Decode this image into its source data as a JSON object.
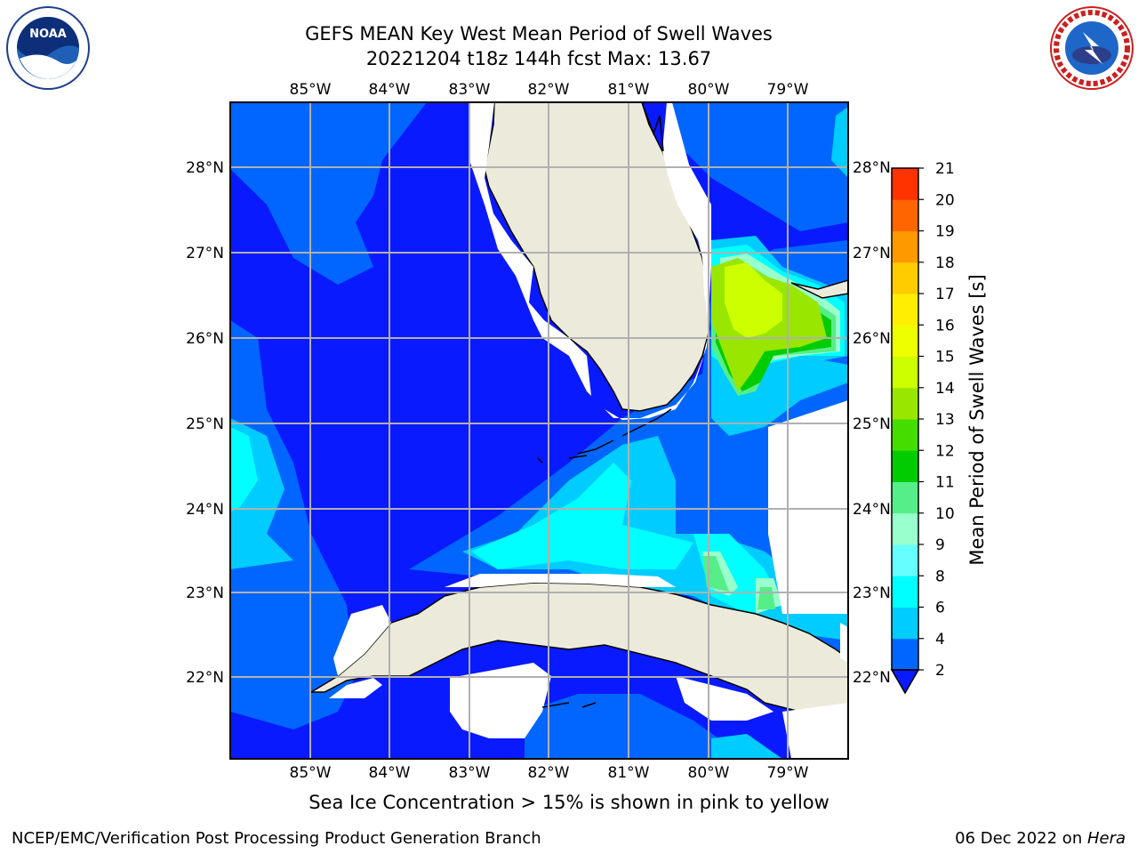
{
  "title": {
    "line1": "GEFS MEAN Key West Mean Period of Swell Waves",
    "line2": "20221204 t18z 144h fcst   Max: 13.67"
  },
  "logos": {
    "left": "noaa-logo",
    "right": "nws-logo"
  },
  "map": {
    "lon_labels": [
      "85°W",
      "84°W",
      "83°W",
      "82°W",
      "81°W",
      "80°W",
      "79°W"
    ],
    "lat_labels": [
      "28°N",
      "27°N",
      "26°N",
      "25°N",
      "24°N",
      "23°N",
      "22°N"
    ],
    "land_color": "#ecebdb",
    "ocean_default_color": "#0a1aff",
    "grid_color": "#b0b0b0"
  },
  "colorbar": {
    "title": "Mean Period of Swell Waves [s]",
    "tick_labels": [
      "2",
      "4",
      "6",
      "8",
      "9",
      "10",
      "11",
      "12",
      "13",
      "14",
      "15",
      "16",
      "17",
      "18",
      "19",
      "20",
      "21"
    ],
    "colors": [
      "#0066ff",
      "#00ccff",
      "#00ffff",
      "#66ffff",
      "#99ffcc",
      "#55ee88",
      "#00cc00",
      "#44dd00",
      "#99e600",
      "#ccff00",
      "#eeff00",
      "#ffee00",
      "#ffcc00",
      "#ff9900",
      "#ff6600",
      "#ff3300",
      "#ff0000"
    ],
    "extend_color": "#0a1aff"
  },
  "note": "Sea Ice Concentration > 15% is shown in pink to yellow",
  "footer": {
    "left": "NCEP/EMC/Verification Post Processing Product Generation Branch",
    "date": "06 Dec 2022 on ",
    "host": "Hera"
  }
}
